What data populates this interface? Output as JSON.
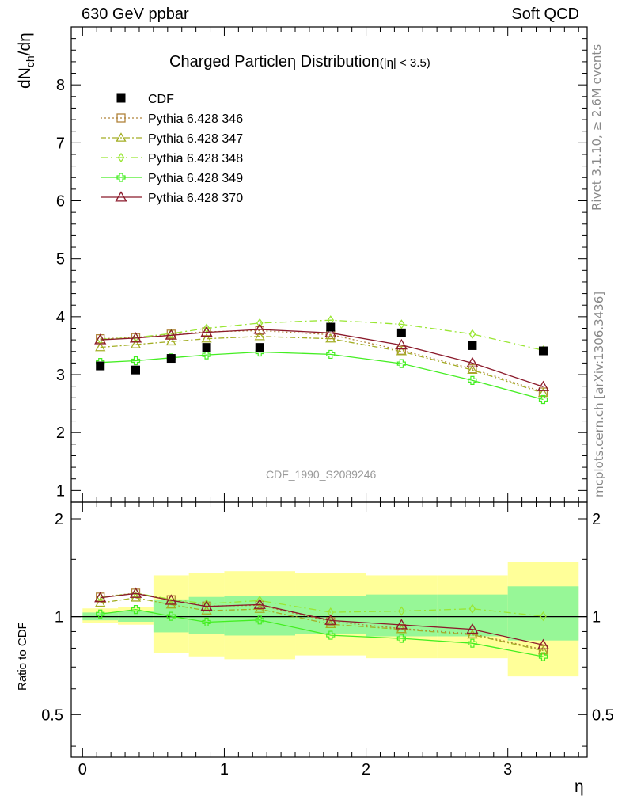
{
  "header": {
    "left": "630 GeV ppbar",
    "right": "Soft QCD"
  },
  "side_labels": {
    "rivet": "Rivet 3.1.10, ≥ 2.6M events",
    "mcplots": "mcplots.cern.ch [arXiv:1306.3436]"
  },
  "chart_data": {
    "type": "scatter",
    "title": "Charged Particle",
    "title_symbol": "η",
    "title_suffix": "Distribution",
    "title_range": "(|η| < 3.5)",
    "watermark": "CDF_1990_S2089246",
    "xlabel": "η",
    "ylabel_main": "dN_ch/dη",
    "ylabel_ratio": "Ratio to CDF",
    "xlim": [
      -0.08,
      3.56
    ],
    "ylim_main": [
      0.8,
      9.0
    ],
    "ylim_ratio": [
      0.37,
      2.25
    ],
    "ratio_log_scale": true,
    "x_ticks": [
      "0",
      "1",
      "2",
      "3"
    ],
    "y_ticks_main": [
      "1",
      "2",
      "3",
      "4",
      "5",
      "6",
      "7",
      "8"
    ],
    "y_ticks_ratio": [
      "0.5",
      "1",
      "2"
    ],
    "x": [
      0.125,
      0.375,
      0.625,
      0.875,
      1.25,
      1.75,
      2.25,
      2.75,
      3.25
    ],
    "data": {
      "name": "CDF",
      "values": [
        3.15,
        3.08,
        3.28,
        3.47,
        3.47,
        3.82,
        3.72,
        3.5,
        3.41
      ],
      "color": "#000000"
    },
    "band_bins": [
      [
        0.0,
        0.25
      ],
      [
        0.25,
        0.5
      ],
      [
        0.5,
        0.75
      ],
      [
        0.75,
        1.0
      ],
      [
        1.0,
        1.5
      ],
      [
        1.5,
        2.0
      ],
      [
        2.0,
        2.5
      ],
      [
        2.5,
        3.0
      ],
      [
        3.0,
        3.5
      ]
    ],
    "band_inner": [
      [
        0.975,
        1.03
      ],
      [
        0.965,
        1.04
      ],
      [
        0.895,
        1.13
      ],
      [
        0.885,
        1.15
      ],
      [
        0.875,
        1.16
      ],
      [
        0.885,
        1.16
      ],
      [
        0.87,
        1.17
      ],
      [
        0.87,
        1.17
      ],
      [
        0.845,
        1.24
      ]
    ],
    "band_outer": [
      [
        0.955,
        1.06
      ],
      [
        0.945,
        1.07
      ],
      [
        0.775,
        1.34
      ],
      [
        0.755,
        1.36
      ],
      [
        0.74,
        1.38
      ],
      [
        0.76,
        1.36
      ],
      [
        0.745,
        1.34
      ],
      [
        0.745,
        1.34
      ],
      [
        0.655,
        1.47
      ]
    ],
    "band_colors": {
      "inner": "#97f797",
      "outer": "#ffff99"
    },
    "series": [
      {
        "name": "Pythia 6.428 346",
        "values": [
          3.62,
          3.64,
          3.7,
          3.74,
          3.76,
          3.69,
          3.42,
          3.1,
          2.7
        ],
        "color": "#b0833a",
        "marker": "square",
        "dash": "2,3"
      },
      {
        "name": "Pythia 6.428 347",
        "values": [
          3.47,
          3.52,
          3.57,
          3.62,
          3.66,
          3.62,
          3.4,
          3.08,
          2.68
        ],
        "color": "#a3ae24",
        "marker": "triangle",
        "dash": "7,3,2,3"
      },
      {
        "name": "Pythia 6.428 348",
        "values": [
          3.61,
          3.64,
          3.71,
          3.8,
          3.89,
          3.94,
          3.87,
          3.7,
          3.42
        ],
        "color": "#99e633",
        "marker": "diamond",
        "dash": "9,4,2,4"
      },
      {
        "name": "Pythia 6.428 349",
        "values": [
          3.21,
          3.24,
          3.29,
          3.34,
          3.39,
          3.35,
          3.19,
          2.9,
          2.57
        ],
        "color": "#44ee22",
        "marker": "cross",
        "dash": ""
      },
      {
        "name": "Pythia 6.428 370",
        "values": [
          3.6,
          3.63,
          3.68,
          3.73,
          3.78,
          3.72,
          3.51,
          3.2,
          2.79
        ],
        "color": "#8b1a2b",
        "marker": "triangle-open",
        "dash": ""
      }
    ]
  }
}
